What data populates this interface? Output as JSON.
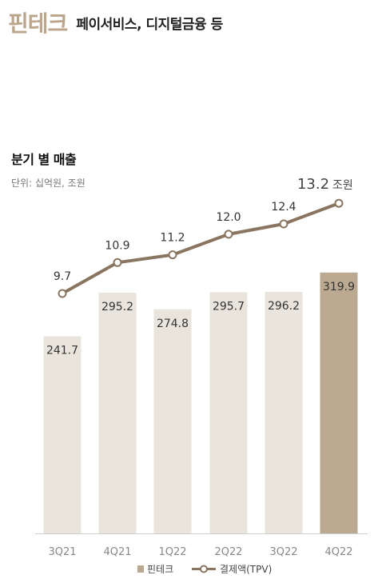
{
  "header": {
    "main": "핀테크",
    "sub": "페이서비스, 디지털금융 등"
  },
  "chart_data": {
    "type": "bar",
    "title": "분기 별 매출",
    "unit_note": "단위: 십억원, 조원",
    "categories": [
      "3Q21",
      "4Q21",
      "1Q22",
      "2Q22",
      "3Q22",
      "4Q22"
    ],
    "series": [
      {
        "name": "핀테크",
        "type": "bar",
        "values": [
          241.7,
          295.2,
          274.8,
          295.7,
          296.2,
          319.9
        ]
      },
      {
        "name": "결제액(TPV)",
        "type": "line",
        "values": [
          9.7,
          10.9,
          11.2,
          12.0,
          12.4,
          13.2
        ]
      }
    ],
    "value_labels_bar": [
      "241.7",
      "295.2",
      "274.8",
      "295.7",
      "296.2",
      "319.9"
    ],
    "value_labels_line": [
      "9.7",
      "10.9",
      "11.2",
      "12.0",
      "12.4",
      "13.2"
    ],
    "last_line_unit": "조원",
    "legend_position": "bottom",
    "colors": {
      "bar": "#e9e4dc",
      "bar_highlight": "#bba991",
      "line": "#8a7560",
      "title_accent": "#bba58b"
    }
  }
}
